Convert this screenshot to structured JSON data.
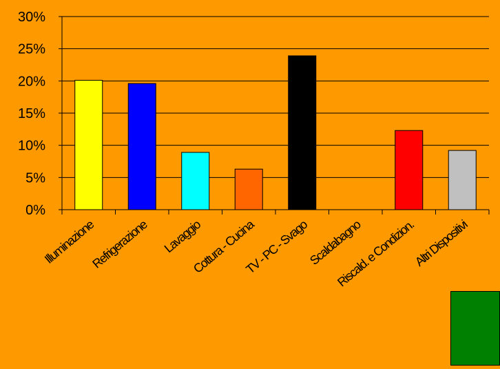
{
  "chart_data": {
    "type": "bar",
    "title": "",
    "xlabel": "",
    "ylabel": "",
    "categories": [
      "Illuminazione",
      "Refrigerazione",
      "Lavaggio",
      "Cottura - Cucina",
      "TV - PC - Svago",
      "Scaldabagno",
      "Riscald. e Condizion.",
      "Altri Dispositivi"
    ],
    "values": [
      20.1,
      19.6,
      8.9,
      6.3,
      23.9,
      0,
      12.3,
      9.2
    ],
    "colors": [
      "#ffff00",
      "#0000ff",
      "#00ffff",
      "#ff6600",
      "#000000",
      "#ff9900",
      "#ff0000",
      "#c0c0c0"
    ],
    "ylim": [
      0,
      30
    ],
    "yticks": [
      0,
      5,
      10,
      15,
      20,
      25,
      30
    ],
    "ytick_labels": [
      "0%",
      "5%",
      "10%",
      "15%",
      "20%",
      "25%",
      "30%"
    ],
    "grid": true,
    "legend": "none"
  },
  "decor": {
    "swatch_color": "#008000",
    "background_color": "#ff9900"
  }
}
